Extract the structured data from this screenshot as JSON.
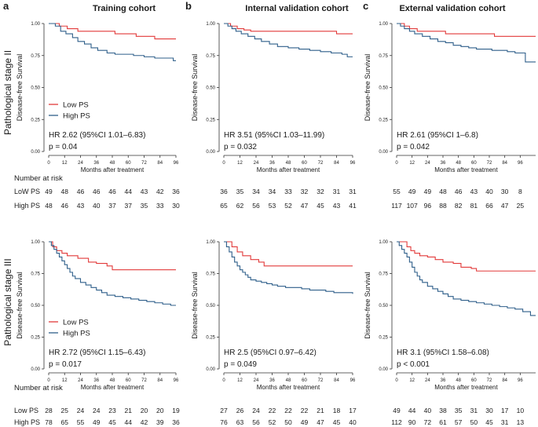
{
  "panel_letters": [
    "a",
    "b",
    "c"
  ],
  "column_titles": [
    "Training cohort",
    "Internal validation cohort",
    "External validation cohort"
  ],
  "row_titles": [
    "Pathological stage II",
    "Pathological stage III"
  ],
  "colors": {
    "low": "#e23a3a",
    "high": "#2f5f8a",
    "axis": "#333333"
  },
  "axis_text": {
    "xlabel": "Months after treatment",
    "ylabel": "Disease-free Survival",
    "ytick_labels": [
      "0.00",
      "0.25",
      "0.50",
      "0.75",
      "1.00"
    ]
  },
  "risk_table": {
    "heading": "Number at risk",
    "row_labels_top": [
      "LoW PS",
      "High PS"
    ],
    "row_labels_bottom": [
      "Low PS",
      "High PS"
    ]
  },
  "chart_data": [
    {
      "id": "a-top",
      "type": "line",
      "title": "Training cohort",
      "xlabel": "Months after treatment",
      "ylabel": "Disease-free Survival",
      "xlim": [
        0,
        96
      ],
      "ylim": [
        0,
        1
      ],
      "xticks": [
        "0",
        "12",
        "24",
        "36",
        "48",
        "60",
        "72",
        "84",
        "96"
      ],
      "yticks": [
        0,
        0.25,
        0.5,
        0.75,
        1
      ],
      "legend": [
        "Low PS",
        "High PS"
      ],
      "legend_position": "middle-left",
      "hr_text": "HR 2.62 (95%CI 1.01–6.83)",
      "p_text": "p = 0.04",
      "series": [
        {
          "name": "Low PS",
          "x": [
            0,
            8,
            14,
            22,
            50,
            60,
            66,
            80,
            96
          ],
          "y": [
            1.0,
            0.98,
            0.96,
            0.94,
            0.92,
            0.92,
            0.9,
            0.88,
            0.88
          ]
        },
        {
          "name": "High PS",
          "x": [
            0,
            5,
            9,
            13,
            18,
            22,
            27,
            32,
            37,
            44,
            50,
            58,
            64,
            72,
            80,
            88,
            94,
            96
          ],
          "y": [
            1.0,
            0.98,
            0.94,
            0.92,
            0.89,
            0.86,
            0.84,
            0.81,
            0.79,
            0.77,
            0.76,
            0.76,
            0.75,
            0.74,
            0.73,
            0.73,
            0.71,
            0.71
          ]
        }
      ],
      "risk_rows": [
        [
          "49",
          "48",
          "46",
          "46",
          "46",
          "44",
          "43",
          "42",
          "36"
        ],
        [
          "48",
          "46",
          "43",
          "40",
          "37",
          "37",
          "35",
          "33",
          "30"
        ]
      ]
    },
    {
      "id": "b-top",
      "type": "line",
      "title": "Internal validation cohort",
      "xlabel": "Months after treatment",
      "ylabel": "Disease-free Survival",
      "xlim": [
        0,
        96
      ],
      "ylim": [
        0,
        1
      ],
      "xticks": [
        "0",
        "12",
        "24",
        "36",
        "48",
        "60",
        "72",
        "84",
        "96"
      ],
      "yticks": [
        0,
        0.25,
        0.5,
        0.75,
        1
      ],
      "legend": [],
      "legend_position": "",
      "hr_text": "HR 3.51 (95%CI 1.03–11.99)",
      "p_text": "p = 0.032",
      "series": [
        {
          "name": "Low PS",
          "x": [
            0,
            5,
            10,
            15,
            20,
            84,
            96
          ],
          "y": [
            1.0,
            0.98,
            0.96,
            0.95,
            0.94,
            0.92,
            0.92
          ]
        },
        {
          "name": "High PS",
          "x": [
            0,
            3,
            6,
            9,
            13,
            18,
            23,
            28,
            34,
            40,
            48,
            56,
            64,
            72,
            80,
            88,
            92,
            96
          ],
          "y": [
            1.0,
            0.98,
            0.96,
            0.94,
            0.92,
            0.9,
            0.88,
            0.86,
            0.84,
            0.82,
            0.81,
            0.8,
            0.79,
            0.78,
            0.77,
            0.76,
            0.74,
            0.74
          ]
        }
      ],
      "risk_rows": [
        [
          "36",
          "35",
          "34",
          "34",
          "33",
          "32",
          "32",
          "31",
          "31"
        ],
        [
          "65",
          "62",
          "56",
          "53",
          "52",
          "47",
          "45",
          "43",
          "41"
        ]
      ]
    },
    {
      "id": "c-top",
      "type": "line",
      "title": "External validation cohort",
      "xlabel": "Months after treatment",
      "ylabel": "Disease-free Survival",
      "xlim": [
        0,
        108
      ],
      "ylim": [
        0,
        1
      ],
      "xticks": [
        "0",
        "12",
        "24",
        "36",
        "48",
        "60",
        "72",
        "84",
        "96"
      ],
      "yticks": [
        0,
        0.25,
        0.5,
        0.75,
        1
      ],
      "legend": [],
      "legend_position": "",
      "hr_text": "HR 2.61 (95%CI 1–6.8)",
      "p_text": "p = 0.042",
      "series": [
        {
          "name": "Low PS",
          "x": [
            0,
            6,
            10,
            16,
            38,
            76,
            108
          ],
          "y": [
            1.0,
            0.98,
            0.96,
            0.94,
            0.92,
            0.9,
            0.9
          ]
        },
        {
          "name": "High PS",
          "x": [
            0,
            3,
            6,
            10,
            14,
            20,
            26,
            32,
            38,
            44,
            50,
            56,
            62,
            68,
            74,
            80,
            86,
            92,
            96,
            100,
            108
          ],
          "y": [
            1.0,
            0.98,
            0.96,
            0.94,
            0.92,
            0.9,
            0.88,
            0.86,
            0.85,
            0.83,
            0.82,
            0.81,
            0.8,
            0.8,
            0.79,
            0.79,
            0.78,
            0.77,
            0.77,
            0.7,
            0.7
          ]
        }
      ],
      "risk_rows": [
        [
          "55",
          "49",
          "49",
          "48",
          "46",
          "43",
          "40",
          "30",
          "8"
        ],
        [
          "117",
          "107",
          "96",
          "88",
          "82",
          "81",
          "66",
          "47",
          "25"
        ]
      ]
    },
    {
      "id": "a-bottom",
      "type": "line",
      "title": "Training cohort",
      "xlabel": "Months after treatment",
      "ylabel": "Disease-free Survival",
      "xlim": [
        0,
        96
      ],
      "ylim": [
        0,
        1
      ],
      "xticks": [
        "0",
        "12",
        "24",
        "36",
        "48",
        "60",
        "72",
        "84",
        "96"
      ],
      "yticks": [
        0,
        0.25,
        0.5,
        0.75,
        1
      ],
      "legend": [
        "Low PS",
        "High PS"
      ],
      "legend_position": "middle-left",
      "hr_text": "HR 2.72 (95%CI 1.15–6.43)",
      "p_text": "p = 0.017",
      "series": [
        {
          "name": "Low PS",
          "x": [
            0,
            3,
            6,
            10,
            14,
            22,
            30,
            36,
            44,
            48,
            96
          ],
          "y": [
            1.0,
            0.96,
            0.93,
            0.91,
            0.89,
            0.87,
            0.84,
            0.83,
            0.81,
            0.78,
            0.78
          ]
        },
        {
          "name": "High PS",
          "x": [
            0,
            2,
            4,
            6,
            8,
            10,
            12,
            14,
            16,
            18,
            20,
            24,
            28,
            32,
            36,
            40,
            44,
            50,
            56,
            62,
            68,
            74,
            80,
            86,
            92,
            96
          ],
          "y": [
            1.0,
            0.97,
            0.94,
            0.91,
            0.88,
            0.85,
            0.82,
            0.79,
            0.76,
            0.73,
            0.71,
            0.68,
            0.66,
            0.64,
            0.62,
            0.6,
            0.58,
            0.57,
            0.56,
            0.55,
            0.54,
            0.53,
            0.52,
            0.51,
            0.5,
            0.5
          ]
        }
      ],
      "risk_rows": [
        [
          "28",
          "25",
          "24",
          "24",
          "23",
          "21",
          "20",
          "20",
          "19"
        ],
        [
          "78",
          "65",
          "55",
          "49",
          "45",
          "44",
          "42",
          "39",
          "36"
        ]
      ]
    },
    {
      "id": "b-bottom",
      "type": "line",
      "title": "Internal validation cohort",
      "xlabel": "Months after treatment",
      "ylabel": "Disease-free Survival",
      "xlim": [
        0,
        96
      ],
      "ylim": [
        0,
        1
      ],
      "xticks": [
        "0",
        "12",
        "24",
        "36",
        "48",
        "60",
        "72",
        "84",
        "96"
      ],
      "yticks": [
        0,
        0.25,
        0.5,
        0.75,
        1
      ],
      "legend": [],
      "legend_position": "",
      "hr_text": "HR 2.5 (95%CI 0.97–6.42)",
      "p_text": "p = 0.049",
      "series": [
        {
          "name": "Low PS",
          "x": [
            0,
            6,
            10,
            14,
            20,
            26,
            30,
            96
          ],
          "y": [
            1.0,
            0.96,
            0.92,
            0.89,
            0.86,
            0.84,
            0.81,
            0.81
          ]
        },
        {
          "name": "High PS",
          "x": [
            0,
            2,
            4,
            6,
            8,
            10,
            12,
            14,
            16,
            18,
            20,
            24,
            28,
            32,
            36,
            40,
            46,
            52,
            58,
            64,
            70,
            76,
            82,
            88,
            96
          ],
          "y": [
            1.0,
            0.96,
            0.92,
            0.88,
            0.84,
            0.81,
            0.78,
            0.76,
            0.74,
            0.72,
            0.7,
            0.69,
            0.68,
            0.67,
            0.66,
            0.65,
            0.64,
            0.64,
            0.63,
            0.62,
            0.62,
            0.61,
            0.6,
            0.6,
            0.59
          ]
        }
      ],
      "risk_rows": [
        [
          "27",
          "26",
          "24",
          "22",
          "22",
          "22",
          "21",
          "18",
          "17"
        ],
        [
          "76",
          "63",
          "56",
          "52",
          "50",
          "49",
          "47",
          "45",
          "40"
        ]
      ]
    },
    {
      "id": "c-bottom",
      "type": "line",
      "title": "External validation cohort",
      "xlabel": "Months after treatment",
      "ylabel": "Disease-free Survival",
      "xlim": [
        0,
        108
      ],
      "ylim": [
        0,
        1
      ],
      "xticks": [
        "0",
        "12",
        "24",
        "36",
        "48",
        "60",
        "72",
        "84",
        "96"
      ],
      "yticks": [
        0,
        0.25,
        0.5,
        0.75,
        1
      ],
      "legend": [],
      "legend_position": "",
      "hr_text": "HR 3.1 (95%CI 1.58–6.08)",
      "p_text": "p < 0.001",
      "series": [
        {
          "name": "Low PS",
          "x": [
            0,
            8,
            11,
            14,
            18,
            24,
            30,
            36,
            44,
            50,
            58,
            62,
            108
          ],
          "y": [
            1.0,
            0.96,
            0.93,
            0.91,
            0.89,
            0.88,
            0.86,
            0.84,
            0.83,
            0.8,
            0.79,
            0.77,
            0.77
          ]
        },
        {
          "name": "High PS",
          "x": [
            0,
            2,
            4,
            6,
            8,
            10,
            12,
            14,
            16,
            18,
            20,
            24,
            28,
            32,
            36,
            40,
            44,
            50,
            56,
            62,
            68,
            74,
            80,
            86,
            92,
            98,
            104,
            108
          ],
          "y": [
            1.0,
            0.97,
            0.94,
            0.91,
            0.88,
            0.84,
            0.8,
            0.76,
            0.73,
            0.7,
            0.68,
            0.65,
            0.63,
            0.61,
            0.59,
            0.57,
            0.55,
            0.54,
            0.53,
            0.52,
            0.51,
            0.5,
            0.49,
            0.48,
            0.47,
            0.45,
            0.42,
            0.42
          ]
        }
      ],
      "risk_rows": [
        [
          "49",
          "44",
          "40",
          "38",
          "35",
          "31",
          "30",
          "17",
          "10"
        ],
        [
          "112",
          "90",
          "72",
          "61",
          "57",
          "50",
          "45",
          "31",
          "13"
        ]
      ]
    }
  ]
}
